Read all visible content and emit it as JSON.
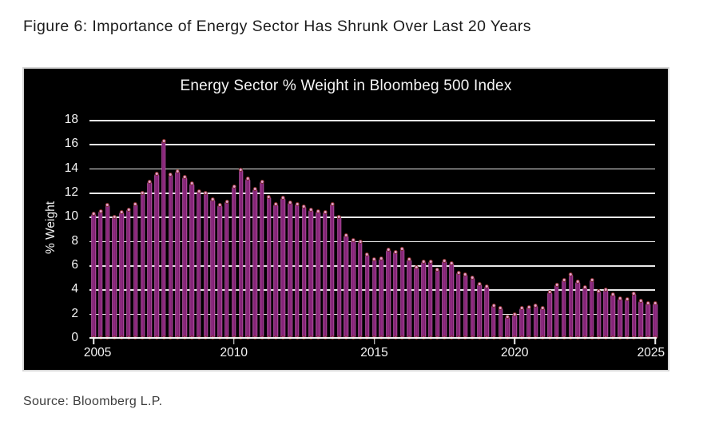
{
  "page": {
    "figure_title": "Figure 6: Importance of Energy Sector Has Shrunk Over Last 20 Years",
    "source": "Source: Bloomberg L.P."
  },
  "chart_data": {
    "type": "bar",
    "title": "Energy Sector % Weight in Bloombeg 500 Index",
    "xlabel": "",
    "ylabel": "% Weight",
    "ylim": [
      0,
      18
    ],
    "yticks": [
      0,
      2,
      4,
      6,
      8,
      10,
      12,
      14,
      16,
      18
    ],
    "xticks": [
      "2005",
      "2010",
      "2015",
      "2020",
      "2025"
    ],
    "grid": true,
    "legend_position": "none",
    "background_color": "#000000",
    "bar_edge_color": "#d464c0",
    "bar_core_color": "#721d67",
    "marker_ring_color": "#80302a",
    "gridline_color": "#e8e8e8",
    "x": [
      "2005 Q1",
      "2005 Q2",
      "2005 Q3",
      "2005 Q4",
      "2006 Q1",
      "2006 Q2",
      "2006 Q3",
      "2006 Q4",
      "2007 Q1",
      "2007 Q2",
      "2007 Q3",
      "2007 Q4",
      "2008 Q1",
      "2008 Q2",
      "2008 Q3",
      "2008 Q4",
      "2009 Q1",
      "2009 Q2",
      "2009 Q3",
      "2009 Q4",
      "2010 Q1",
      "2010 Q2",
      "2010 Q3",
      "2010 Q4",
      "2011 Q1",
      "2011 Q2",
      "2011 Q3",
      "2011 Q4",
      "2012 Q1",
      "2012 Q2",
      "2012 Q3",
      "2012 Q4",
      "2013 Q1",
      "2013 Q2",
      "2013 Q3",
      "2013 Q4",
      "2014 Q1",
      "2014 Q2",
      "2014 Q3",
      "2014 Q4",
      "2015 Q1",
      "2015 Q2",
      "2015 Q3",
      "2015 Q4",
      "2016 Q1",
      "2016 Q2",
      "2016 Q3",
      "2016 Q4",
      "2017 Q1",
      "2017 Q2",
      "2017 Q3",
      "2017 Q4",
      "2018 Q1",
      "2018 Q2",
      "2018 Q3",
      "2018 Q4",
      "2019 Q1",
      "2019 Q2",
      "2019 Q3",
      "2019 Q4",
      "2020 Q1",
      "2020 Q2",
      "2020 Q3",
      "2020 Q4",
      "2021 Q1",
      "2021 Q2",
      "2021 Q3",
      "2021 Q4",
      "2022 Q1",
      "2022 Q2",
      "2022 Q3",
      "2022 Q4",
      "2023 Q1",
      "2023 Q2",
      "2023 Q3",
      "2023 Q4",
      "2024 Q1",
      "2024 Q2",
      "2024 Q3",
      "2024 Q4",
      "2025 Q1"
    ],
    "values": [
      10.3,
      10.5,
      11.0,
      10.0,
      10.4,
      10.6,
      11.1,
      12.0,
      12.9,
      13.6,
      16.3,
      13.5,
      13.8,
      13.3,
      12.8,
      12.1,
      12.0,
      11.5,
      11.0,
      11.3,
      12.5,
      13.9,
      13.2,
      12.3,
      12.9,
      11.7,
      11.1,
      11.6,
      11.2,
      11.1,
      10.9,
      10.6,
      10.5,
      10.4,
      11.1,
      10.0,
      8.5,
      8.1,
      8.0,
      6.9,
      6.5,
      6.6,
      7.3,
      7.1,
      7.4,
      6.5,
      5.9,
      6.3,
      6.3,
      5.7,
      6.4,
      6.2,
      5.4,
      5.3,
      5.0,
      4.5,
      4.3,
      2.7,
      2.5,
      1.8,
      2.0,
      2.5,
      2.6,
      2.7,
      2.5,
      3.8,
      4.4,
      4.8,
      5.3,
      4.7,
      4.2,
      4.8,
      3.9,
      4.0,
      3.6,
      3.3,
      3.2,
      3.7,
      3.1,
      2.9,
      2.9
    ]
  }
}
